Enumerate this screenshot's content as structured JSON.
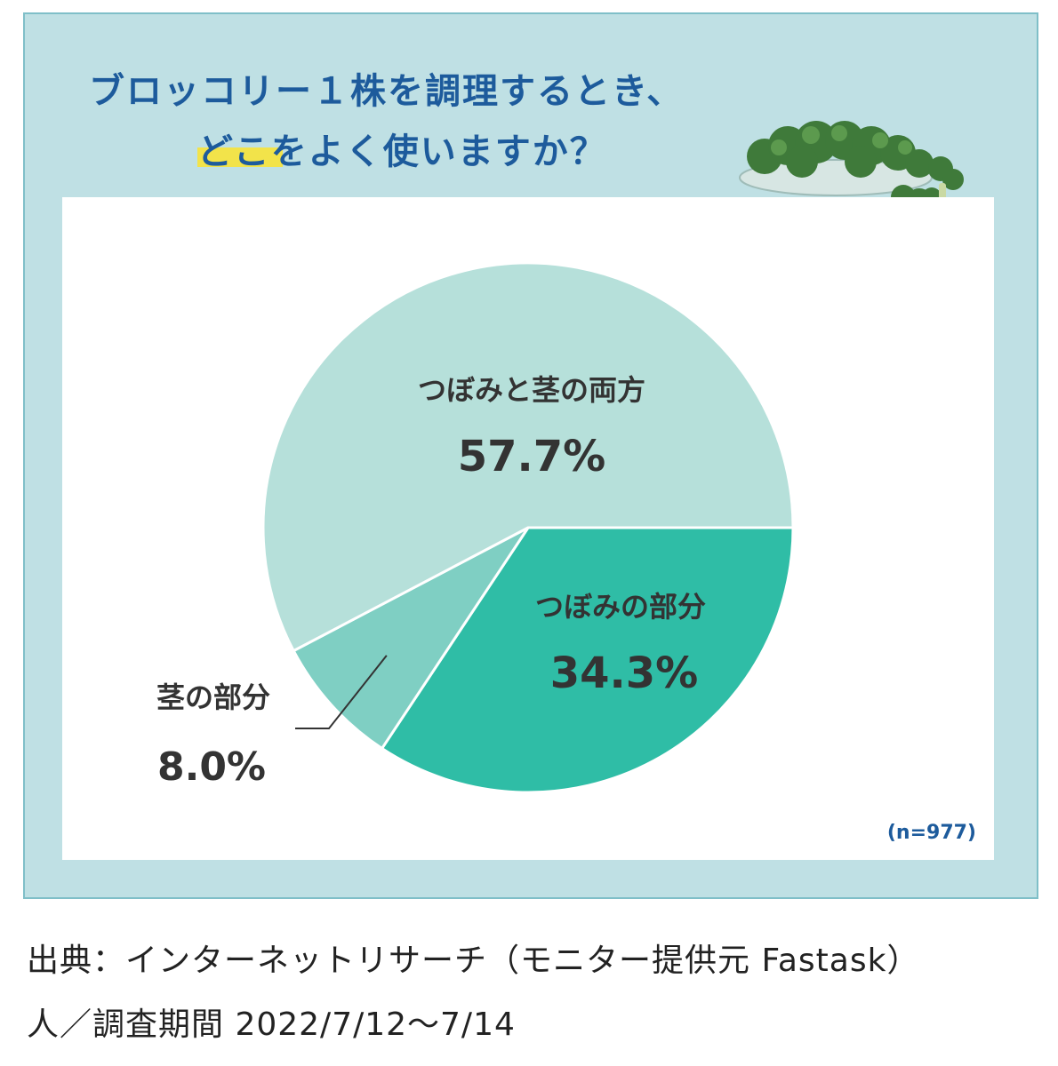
{
  "title": {
    "line1": "ブロッコリー１株を調理するとき、",
    "line2": "どこをよく使いますか？"
  },
  "colors": {
    "panel": "#bfe0e4",
    "title": "#1d5b9c",
    "highlight": "#f2e34a",
    "sample_note": "#1d5b9c",
    "label_text": "#333333"
  },
  "chart_data": {
    "type": "pie",
    "slices": [
      {
        "label": "つぼみと茎の両方",
        "value": 57.7,
        "display": "57.7%",
        "color": "#b6e0da"
      },
      {
        "label": "つぼみの部分",
        "value": 34.3,
        "display": "34.3%",
        "color": "#2fbda6"
      },
      {
        "label": "茎の部分",
        "value": 8.0,
        "display": "8.0%",
        "color": "#7fcfc3"
      }
    ],
    "sample_note": "(n=977)"
  },
  "footer": {
    "source": "出典：インターネットリサーチ（モニター提供元 Fastask）",
    "period": "人／調査期間 2022/7/12～7/14"
  },
  "icons": [
    "broccoli-plate-icon"
  ]
}
